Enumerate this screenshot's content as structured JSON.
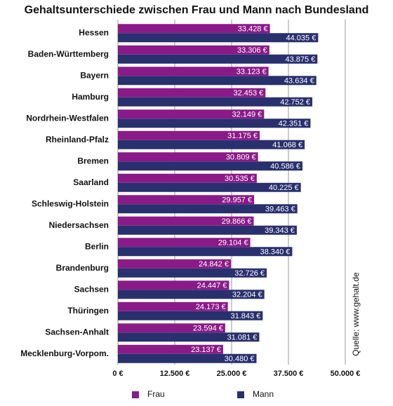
{
  "chart_data": {
    "type": "bar",
    "orientation": "horizontal",
    "title": "Gehaltsunterschiede zwischen Frau und Mann nach Bundesland",
    "source": "Quelle: www.gehalt.de",
    "categories": [
      "Hessen",
      "Baden-Württemberg",
      "Bayern",
      "Hamburg",
      "Nordrhein-Westfalen",
      "Rheinland-Pfalz",
      "Bremen",
      "Saarland",
      "Schleswig-Holstein",
      "Niedersachsen",
      "Berlin",
      "Brandenburg",
      "Sachsen",
      "Thüringen",
      "Sachsen-Anhalt",
      "Mecklenburg-Vorpom."
    ],
    "series": [
      {
        "name": "Frau",
        "color": "#8b1a89",
        "values": [
          33428,
          33306,
          33123,
          32453,
          32149,
          31175,
          30809,
          30535,
          29957,
          29866,
          29104,
          24842,
          24447,
          24173,
          23594,
          23137
        ],
        "value_labels": [
          "33.428 €",
          "33.306 €",
          "33.123 €",
          "32.453 €",
          "32.149 €",
          "31.175 €",
          "30.809 €",
          "30.535 €",
          "29.957 €",
          "29.866 €",
          "29.104 €",
          "24.842 €",
          "24.447 €",
          "24.173 €",
          "23.594 €",
          "23.137 €"
        ]
      },
      {
        "name": "Mann",
        "color": "#28306e",
        "values": [
          44035,
          43875,
          43634,
          42752,
          42351,
          41068,
          40586,
          40225,
          39463,
          39343,
          38340,
          32726,
          32204,
          31843,
          31081,
          30480
        ],
        "value_labels": [
          "44.035 €",
          "43.875 €",
          "43.634 €",
          "42.752 €",
          "42.351 €",
          "41.068 €",
          "40.586 €",
          "40.225 €",
          "39.463 €",
          "39.343 €",
          "38.340 €",
          "32.726 €",
          "32.204 €",
          "31.843 €",
          "31.081 €",
          "30.480 €"
        ]
      }
    ],
    "xlim": [
      0,
      50000
    ],
    "xticks": [
      {
        "value": 0,
        "label": "0 €"
      },
      {
        "value": 12500,
        "label": "12.500 €"
      },
      {
        "value": 25000,
        "label": "25.000 €"
      },
      {
        "value": 37500,
        "label": "37.500 €"
      },
      {
        "value": 50000,
        "label": "50.000 €"
      }
    ],
    "grid": true
  }
}
